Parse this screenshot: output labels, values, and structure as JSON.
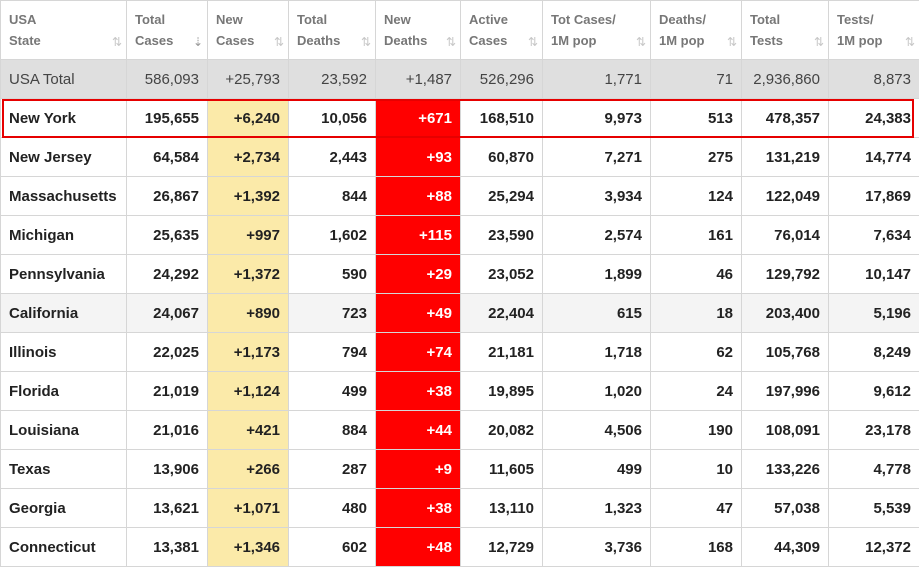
{
  "columns": [
    {
      "l1": "USA",
      "l2": "State",
      "sort": "⇅"
    },
    {
      "l1": "Total",
      "l2": "Cases",
      "sort": "⇣"
    },
    {
      "l1": "New",
      "l2": "Cases",
      "sort": "⇅"
    },
    {
      "l1": "Total",
      "l2": "Deaths",
      "sort": "⇅"
    },
    {
      "l1": "New",
      "l2": "Deaths",
      "sort": "⇅"
    },
    {
      "l1": "Active",
      "l2": "Cases",
      "sort": "⇅"
    },
    {
      "l1": "Tot Cases/",
      "l2": "1M pop",
      "sort": "⇅"
    },
    {
      "l1": "Deaths/",
      "l2": "1M pop",
      "sort": "⇅"
    },
    {
      "l1": "Total",
      "l2": "Tests",
      "sort": "⇅"
    },
    {
      "l1": "Tests/",
      "l2": "1M pop",
      "sort": "⇅"
    }
  ],
  "rows": [
    [
      "USA Total",
      "586,093",
      "+25,793",
      "23,592",
      "+1,487",
      "526,296",
      "1,771",
      "71",
      "2,936,860",
      "8,873"
    ],
    [
      "New York",
      "195,655",
      "+6,240",
      "10,056",
      "+671",
      "168,510",
      "9,973",
      "513",
      "478,357",
      "24,383"
    ],
    [
      "New Jersey",
      "64,584",
      "+2,734",
      "2,443",
      "+93",
      "60,870",
      "7,271",
      "275",
      "131,219",
      "14,774"
    ],
    [
      "Massachusetts",
      "26,867",
      "+1,392",
      "844",
      "+88",
      "25,294",
      "3,934",
      "124",
      "122,049",
      "17,869"
    ],
    [
      "Michigan",
      "25,635",
      "+997",
      "1,602",
      "+115",
      "23,590",
      "2,574",
      "161",
      "76,014",
      "7,634"
    ],
    [
      "Pennsylvania",
      "24,292",
      "+1,372",
      "590",
      "+29",
      "23,052",
      "1,899",
      "46",
      "129,792",
      "10,147"
    ],
    [
      "California",
      "24,067",
      "+890",
      "723",
      "+49",
      "22,404",
      "615",
      "18",
      "203,400",
      "5,196"
    ],
    [
      "Illinois",
      "22,025",
      "+1,173",
      "794",
      "+74",
      "21,181",
      "1,718",
      "62",
      "105,768",
      "8,249"
    ],
    [
      "Florida",
      "21,019",
      "+1,124",
      "499",
      "+38",
      "19,895",
      "1,020",
      "24",
      "197,996",
      "9,612"
    ],
    [
      "Louisiana",
      "21,016",
      "+421",
      "884",
      "+44",
      "20,082",
      "4,506",
      "190",
      "108,091",
      "23,178"
    ],
    [
      "Texas",
      "13,906",
      "+266",
      "287",
      "+9",
      "11,605",
      "499",
      "10",
      "133,226",
      "4,778"
    ],
    [
      "Georgia",
      "13,621",
      "+1,071",
      "480",
      "+38",
      "13,110",
      "1,323",
      "47",
      "57,038",
      "5,539"
    ],
    [
      "Connecticut",
      "13,381",
      "+1,346",
      "602",
      "+48",
      "12,729",
      "3,736",
      "168",
      "44,309",
      "12,372"
    ]
  ],
  "colors": {
    "new_cases_bg": "#fbeaa9",
    "new_deaths_bg": "#ff0000",
    "total_row_bg": "#dfdfdf",
    "highlight_border": "#e60000"
  }
}
